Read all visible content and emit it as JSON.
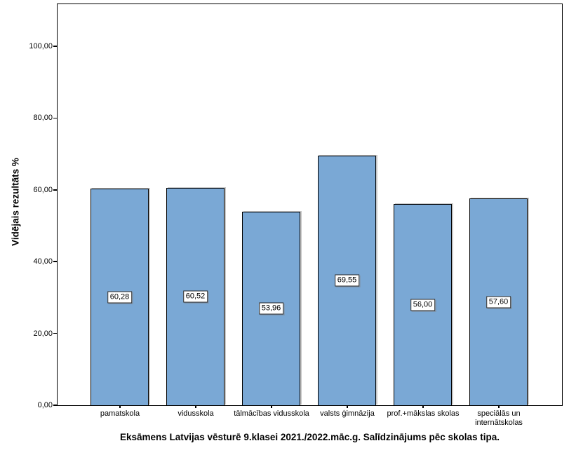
{
  "chart_data": {
    "type": "bar",
    "title": "Eksāmens Latvijas vēsturē 9.klasei 2021./2022.māc.g. Salīdzinājums pēc skolas tipa.",
    "xlabel": "",
    "ylabel": "Vidējais rezultāts %",
    "categories": [
      "pamatskola",
      "vidusskola",
      "tālmācības vidusskola",
      "valsts ģimnāzija",
      "prof.+mākslas skolas",
      "speciālās un\ninternātskolas"
    ],
    "values": [
      60.28,
      60.52,
      53.96,
      69.55,
      56.0,
      57.6
    ],
    "value_labels": [
      "60,28",
      "60,52",
      "53,96",
      "69,55",
      "56,00",
      "57,60"
    ],
    "y_tick_values": [
      0,
      20,
      40,
      60,
      80,
      100
    ],
    "y_tick_labels": [
      "0,00",
      "20,00",
      "40,00",
      "60,00",
      "80,00",
      "100,00"
    ],
    "ylim": [
      0,
      111.5
    ],
    "grid": false,
    "legend": null,
    "bar_color": "#7AA8D5",
    "bar_border_color": "#000000",
    "label_box_color": "#ffffff"
  }
}
